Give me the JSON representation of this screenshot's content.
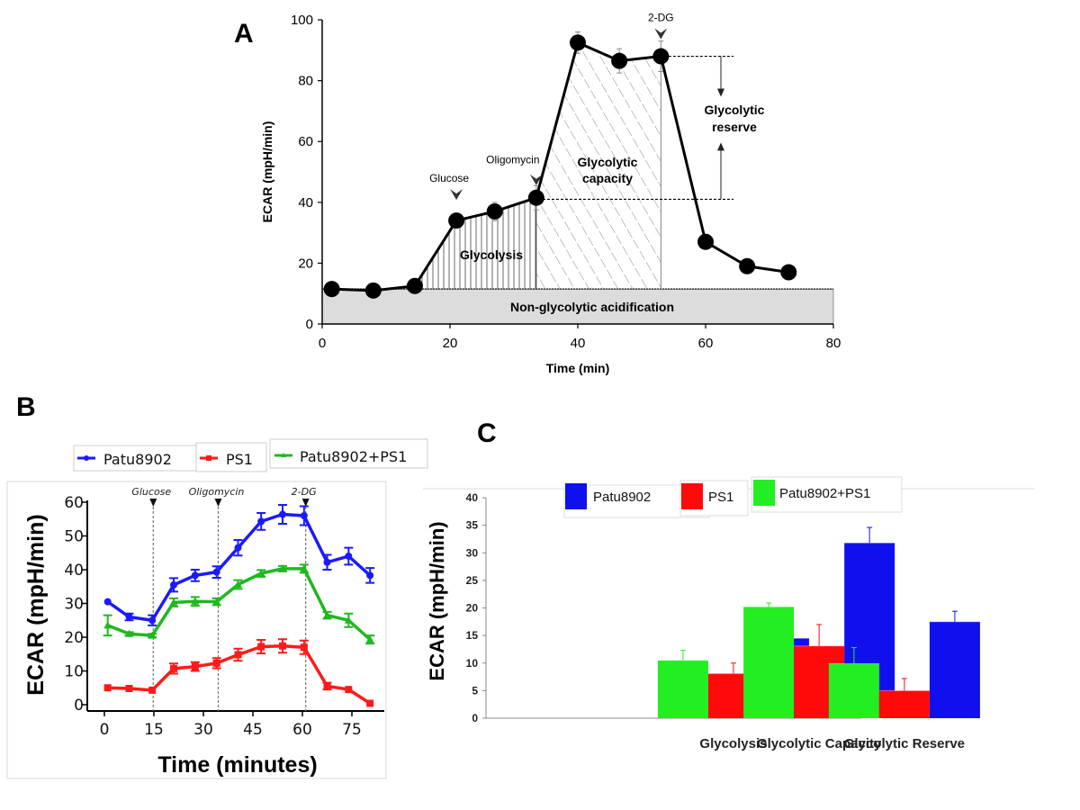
{
  "panels": {
    "A": {
      "letter": "A"
    },
    "B": {
      "letter": "B"
    },
    "C": {
      "letter": "C"
    }
  },
  "chart_data": [
    {
      "id": "A",
      "type": "line",
      "title": "",
      "xlabel": "Time (min)",
      "ylabel": "ECAR (mpH/min)",
      "xlim": [
        0,
        80
      ],
      "ylim": [
        0,
        100
      ],
      "xticks": [
        0,
        20,
        40,
        60,
        80
      ],
      "yticks": [
        0,
        20,
        40,
        60,
        80,
        100
      ],
      "series": [
        {
          "name": "ECAR",
          "color": "#000000",
          "x": [
            1.5,
            8,
            14.5,
            21,
            27,
            33.5,
            40,
            46.5,
            53,
            60,
            66.5,
            73
          ],
          "y": [
            11.5,
            11,
            12.5,
            34,
            37,
            41.5,
            92.5,
            86.5,
            88,
            27,
            19,
            17
          ],
          "err": [
            0,
            0,
            0,
            0,
            3,
            4,
            3.5,
            4,
            5,
            0,
            0,
            0
          ]
        }
      ],
      "baseline": 11.5,
      "annotations": {
        "injections": [
          {
            "label": "Glucose",
            "x": 21
          },
          {
            "label": "Oligomycin",
            "x": 33.5
          },
          {
            "label": "2-DG",
            "x": 53
          }
        ],
        "regions": [
          {
            "label": "Glycolysis"
          },
          {
            "label": "Glycolytic capacity",
            "lines": [
              "Glycolytic",
              "capacity"
            ]
          },
          {
            "label": "Non-glycolytic acidification"
          }
        ],
        "reserve": {
          "lines": [
            "Glycolytic",
            "reserve"
          ],
          "from": 41,
          "to": 88
        }
      }
    },
    {
      "id": "B",
      "type": "line",
      "title": "",
      "xlabel": "Time (minutes)",
      "ylabel": "ECAR (mpH/min)",
      "xlim": [
        -3,
        83
      ],
      "ylim": [
        0,
        60
      ],
      "xticks": [
        0,
        15,
        30,
        45,
        60,
        75
      ],
      "yticks": [
        0,
        10,
        20,
        30,
        40,
        50,
        60
      ],
      "x": [
        1,
        7.5,
        14.5,
        21,
        27.5,
        34,
        40.5,
        47.5,
        54,
        60.5,
        67.5,
        74,
        80.5
      ],
      "legend": "top",
      "injections": [
        {
          "label": "Glucose",
          "x": 14.8
        },
        {
          "label": "Oligomycin",
          "x": 34.5
        },
        {
          "label": "2-DG",
          "x": 61
        }
      ],
      "series": [
        {
          "name": "Patu8902",
          "color": "#1a1aff",
          "marker": "circle",
          "values": [
            30.5,
            26,
            25,
            35.5,
            38.3,
            39.3,
            46.5,
            54.3,
            56.4,
            56,
            42.2,
            44,
            38.3
          ],
          "err": [
            0,
            1,
            1.5,
            2,
            1.7,
            1.7,
            2.3,
            2.5,
            2.8,
            2.8,
            2.2,
            2.5,
            2.2
          ]
        },
        {
          "name": "PS1",
          "color": "#ff1a1a",
          "marker": "square",
          "values": [
            5,
            4.8,
            4.3,
            10.7,
            11.3,
            12.3,
            14.8,
            17.2,
            17.4,
            17,
            5.5,
            4.5,
            0.4
          ],
          "err": [
            0,
            0,
            0,
            1.5,
            1.3,
            1.5,
            1.8,
            2,
            2,
            2,
            1,
            0,
            0
          ]
        },
        {
          "name": "Patu8902+PS1",
          "color": "#1fb81f",
          "marker": "triangle",
          "values": [
            23.5,
            21,
            20.5,
            30.3,
            30.6,
            30.5,
            35.6,
            38.9,
            40.3,
            40.3,
            26.5,
            25,
            19.3
          ],
          "err": [
            3,
            0.5,
            0.5,
            1.2,
            1.3,
            1,
            1.3,
            1,
            0.8,
            1.2,
            1,
            2,
            1.2
          ]
        }
      ]
    },
    {
      "id": "C",
      "type": "bar",
      "title": "",
      "xlabel": "",
      "ylabel": "ECAR (mpH/min)",
      "ylim": [
        0,
        40
      ],
      "yticks": [
        0,
        5,
        10,
        15,
        20,
        25,
        30,
        35,
        40
      ],
      "categories": [
        "Glycolysis",
        "Glycolytic Capacity",
        "Glycolytic Reserve"
      ],
      "legend": "top",
      "legend_order": [
        "Patu8902",
        "PS1",
        "Patu8902+PS1"
      ],
      "series": [
        {
          "name": "Patu8902+PS1",
          "color": "#22ee22",
          "values": [
            10.5,
            20.2,
            9.9
          ],
          "err": [
            1.8,
            0.7,
            2.9
          ]
        },
        {
          "name": "PS1",
          "color": "#ff0a0a",
          "values": [
            8.1,
            13.1,
            5.0
          ],
          "err": [
            1.9,
            3.9,
            2.2
          ]
        },
        {
          "name": "Patu8902",
          "color": "#1010ee",
          "values": [
            14.5,
            31.8,
            17.5
          ],
          "err": [
            0.8,
            2.8,
            1.9
          ]
        }
      ]
    }
  ]
}
